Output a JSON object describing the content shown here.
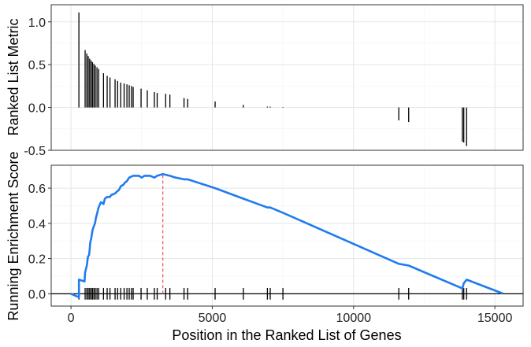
{
  "colors": {
    "panel_border": "#333333",
    "grid_major": "#e5e5e5",
    "grid_minor": "#f2f2f2",
    "bars": "#000000",
    "es_line": "#1f7cf0",
    "peak_marker": "#e8606a",
    "zero_line": "#000000",
    "tick_text": "#222222"
  },
  "chart_data": [
    {
      "type": "bar",
      "panel": "top",
      "ylabel": "Ranked List Metric",
      "xlim": [
        -700,
        16000
      ],
      "ylim": [
        -0.5,
        1.2
      ],
      "x_ticks": [
        0,
        5000,
        10000,
        15000
      ],
      "y_ticks": [
        -0.5,
        0.0,
        0.5,
        1.0
      ],
      "y_tick_labels": [
        "-0.5",
        "0.0",
        "0.5",
        "1.0"
      ],
      "grid": true,
      "bars": [
        {
          "x": 280,
          "y": 1.11
        },
        {
          "x": 500,
          "y": 0.67
        },
        {
          "x": 560,
          "y": 0.63
        },
        {
          "x": 610,
          "y": 0.6
        },
        {
          "x": 660,
          "y": 0.57
        },
        {
          "x": 710,
          "y": 0.55
        },
        {
          "x": 760,
          "y": 0.53
        },
        {
          "x": 810,
          "y": 0.51
        },
        {
          "x": 860,
          "y": 0.49
        },
        {
          "x": 920,
          "y": 0.47
        },
        {
          "x": 980,
          "y": 0.45
        },
        {
          "x": 1150,
          "y": 0.4
        },
        {
          "x": 1280,
          "y": 0.37
        },
        {
          "x": 1380,
          "y": 0.35
        },
        {
          "x": 1560,
          "y": 0.33
        },
        {
          "x": 1650,
          "y": 0.31
        },
        {
          "x": 1760,
          "y": 0.29
        },
        {
          "x": 1880,
          "y": 0.28
        },
        {
          "x": 1980,
          "y": 0.27
        },
        {
          "x": 2060,
          "y": 0.26
        },
        {
          "x": 2140,
          "y": 0.25
        },
        {
          "x": 2200,
          "y": 0.24
        },
        {
          "x": 2480,
          "y": 0.22
        },
        {
          "x": 2700,
          "y": 0.2
        },
        {
          "x": 2950,
          "y": 0.18
        },
        {
          "x": 3050,
          "y": 0.17
        },
        {
          "x": 3350,
          "y": 0.16
        },
        {
          "x": 3500,
          "y": 0.15
        },
        {
          "x": 4000,
          "y": 0.11
        },
        {
          "x": 4130,
          "y": 0.1
        },
        {
          "x": 5100,
          "y": 0.07
        },
        {
          "x": 6100,
          "y": 0.03
        },
        {
          "x": 6950,
          "y": 0.01
        },
        {
          "x": 7050,
          "y": 0.01
        },
        {
          "x": 7500,
          "y": 0.005
        },
        {
          "x": 11600,
          "y": -0.15
        },
        {
          "x": 11950,
          "y": -0.17
        },
        {
          "x": 13850,
          "y": -0.4
        },
        {
          "x": 13900,
          "y": -0.41
        },
        {
          "x": 14000,
          "y": -0.45
        }
      ]
    },
    {
      "type": "line",
      "panel": "bottom",
      "xlabel": "Position in the Ranked List of Genes",
      "ylabel": "Running Enrichment Score",
      "xlim": [
        -700,
        16000
      ],
      "ylim": [
        -0.07,
        0.73
      ],
      "x_ticks": [
        0,
        5000,
        10000,
        15000
      ],
      "x_tick_labels": [
        "0",
        "5000",
        "10000",
        "15000"
      ],
      "y_ticks": [
        0.0,
        0.2,
        0.4,
        0.6
      ],
      "y_tick_labels": [
        "0.0",
        "0.2",
        "0.4",
        "0.6"
      ],
      "grid": true,
      "peak_x": 3250,
      "series": [
        {
          "values": [
            [
              0,
              0.0
            ],
            [
              280,
              -0.02
            ],
            [
              280,
              0.08
            ],
            [
              480,
              0.07
            ],
            [
              500,
              0.12
            ],
            [
              560,
              0.16
            ],
            [
              600,
              0.21
            ],
            [
              640,
              0.22
            ],
            [
              660,
              0.25
            ],
            [
              680,
              0.29
            ],
            [
              710,
              0.31
            ],
            [
              740,
              0.34
            ],
            [
              760,
              0.36
            ],
            [
              800,
              0.38
            ],
            [
              850,
              0.4
            ],
            [
              880,
              0.43
            ],
            [
              930,
              0.46
            ],
            [
              960,
              0.48
            ],
            [
              1000,
              0.5
            ],
            [
              1060,
              0.52
            ],
            [
              1150,
              0.51
            ],
            [
              1200,
              0.54
            ],
            [
              1280,
              0.55
            ],
            [
              1380,
              0.55
            ],
            [
              1420,
              0.56
            ],
            [
              1560,
              0.57
            ],
            [
              1620,
              0.58
            ],
            [
              1700,
              0.59
            ],
            [
              1760,
              0.61
            ],
            [
              1860,
              0.62
            ],
            [
              1900,
              0.63
            ],
            [
              1980,
              0.64
            ],
            [
              2060,
              0.66
            ],
            [
              2200,
              0.67
            ],
            [
              2400,
              0.67
            ],
            [
              2500,
              0.66
            ],
            [
              2600,
              0.67
            ],
            [
              2800,
              0.67
            ],
            [
              2950,
              0.66
            ],
            [
              3050,
              0.67
            ],
            [
              3250,
              0.68
            ],
            [
              3500,
              0.67
            ],
            [
              3700,
              0.66
            ],
            [
              4000,
              0.65
            ],
            [
              4130,
              0.65
            ],
            [
              5100,
              0.6
            ],
            [
              6100,
              0.54
            ],
            [
              6950,
              0.49
            ],
            [
              7050,
              0.49
            ],
            [
              7500,
              0.46
            ],
            [
              11600,
              0.17
            ],
            [
              11950,
              0.16
            ],
            [
              13850,
              0.03
            ],
            [
              13900,
              0.06
            ],
            [
              14000,
              0.08
            ],
            [
              15300,
              0.0
            ]
          ]
        }
      ],
      "hit_positions": [
        280,
        500,
        560,
        610,
        660,
        710,
        760,
        810,
        860,
        920,
        980,
        1150,
        1280,
        1380,
        1560,
        1650,
        1760,
        1880,
        1980,
        2060,
        2140,
        2200,
        2480,
        2700,
        2950,
        3050,
        3350,
        3500,
        4000,
        4130,
        5100,
        6100,
        6950,
        7050,
        7500,
        11600,
        11950,
        13850,
        13900,
        14000
      ]
    }
  ]
}
